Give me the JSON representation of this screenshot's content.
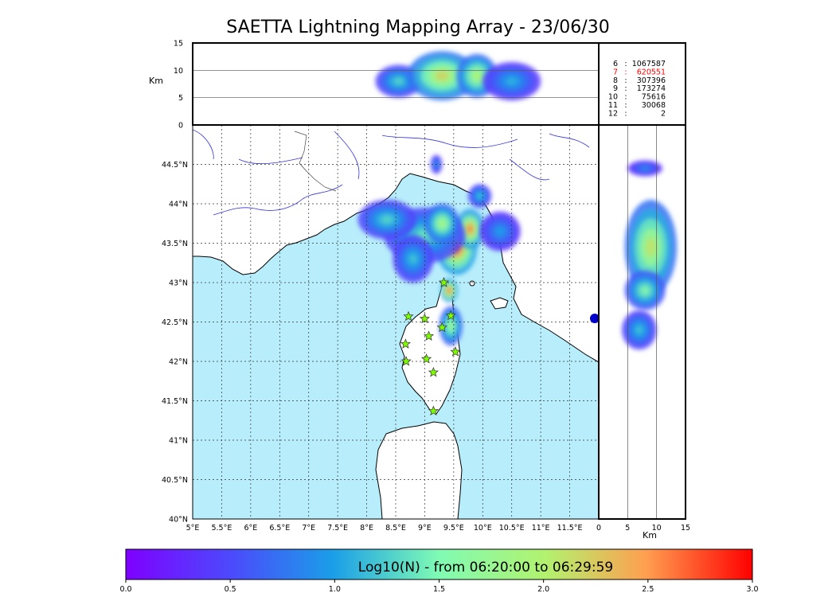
{
  "chart_data": {
    "type": "heatmap",
    "title": "SAETTA Lightning Mapping Array - 23/06/30",
    "colors": {
      "sea": "#b8eefb",
      "land": "#ffffff",
      "coast": "#000000",
      "rivers": "#3333dd",
      "borders": "#444444",
      "stations": "#7cfc00",
      "radar_dot": "#0000cc"
    },
    "colormap": "rainbow",
    "map": {
      "lon_range": [
        5,
        12
      ],
      "lat_range": [
        40,
        45
      ],
      "lon_ticks": [
        "5°E",
        "5.5°E",
        "6°E",
        "6.5°E",
        "7°E",
        "7.5°E",
        "8°E",
        "8.5°E",
        "9°E",
        "9.5°E",
        "10°E",
        "10.5°E",
        "11°E",
        "11.5°E"
      ],
      "lat_ticks": [
        "40°N",
        "40.5°N",
        "41°N",
        "41.5°N",
        "42°N",
        "42.5°N",
        "43°N",
        "43.5°N",
        "44°N",
        "44.5°N"
      ],
      "grid": true,
      "stations": [
        {
          "lon": 9.33,
          "lat": 43.0
        },
        {
          "lon": 8.72,
          "lat": 42.57
        },
        {
          "lon": 9.0,
          "lat": 42.54
        },
        {
          "lon": 9.45,
          "lat": 42.58
        },
        {
          "lon": 9.3,
          "lat": 42.43
        },
        {
          "lon": 9.07,
          "lat": 42.32
        },
        {
          "lon": 8.67,
          "lat": 42.22
        },
        {
          "lon": 9.53,
          "lat": 42.12
        },
        {
          "lon": 8.68,
          "lat": 42.0
        },
        {
          "lon": 9.03,
          "lat": 42.03
        },
        {
          "lon": 9.15,
          "lat": 41.86
        },
        {
          "lon": 9.15,
          "lat": 41.37
        }
      ],
      "density_blobs": [
        {
          "lon": 9.55,
          "lat": 43.45,
          "rlon": 0.35,
          "rlat": 0.35,
          "level": 2.8
        },
        {
          "lon": 9.78,
          "lat": 43.68,
          "rlon": 0.25,
          "rlat": 0.25,
          "level": 2.6
        },
        {
          "lon": 9.42,
          "lat": 42.9,
          "rlon": 0.15,
          "rlat": 0.15,
          "level": 2.7
        },
        {
          "lon": 9.45,
          "lat": 42.45,
          "rlon": 0.2,
          "rlat": 0.25,
          "level": 1.8
        },
        {
          "lon": 9.0,
          "lat": 43.6,
          "rlon": 0.7,
          "rlat": 0.35,
          "level": 1.4
        },
        {
          "lon": 8.35,
          "lat": 43.8,
          "rlon": 0.5,
          "rlat": 0.25,
          "level": 1.3
        },
        {
          "lon": 8.8,
          "lat": 43.3,
          "rlon": 0.35,
          "rlat": 0.3,
          "level": 1.2
        },
        {
          "lon": 9.3,
          "lat": 43.75,
          "rlon": 0.3,
          "rlat": 0.25,
          "level": 1.9
        },
        {
          "lon": 9.95,
          "lat": 44.1,
          "rlon": 0.2,
          "rlat": 0.15,
          "level": 1.2
        },
        {
          "lon": 10.3,
          "lat": 43.65,
          "rlon": 0.35,
          "rlat": 0.25,
          "level": 1.0
        },
        {
          "lon": 9.2,
          "lat": 44.5,
          "rlon": 0.1,
          "rlat": 0.12,
          "level": 1.0
        }
      ]
    },
    "alt_panel": {
      "ylabel": "Km",
      "y_range": [
        0,
        15
      ],
      "y_ticks": [
        "0",
        "5",
        "10",
        "15"
      ],
      "hlines": [
        5,
        10
      ],
      "legend": [
        {
          "label": "6",
          "count": "1067587",
          "color": "#000000"
        },
        {
          "label": "7",
          "count": "620551",
          "color": "#ff0000"
        },
        {
          "label": "8",
          "count": "307396",
          "color": "#000000"
        },
        {
          "label": "9",
          "count": "173274",
          "color": "#000000"
        },
        {
          "label": "10",
          "count": "75616",
          "color": "#000000"
        },
        {
          "label": "11",
          "count": "30068",
          "color": "#000000"
        },
        {
          "label": "12",
          "count": "2",
          "color": "#000000"
        }
      ],
      "blobs": [
        {
          "lon": 8.55,
          "alt": 8,
          "rlon": 0.4,
          "ralt": 3,
          "level": 1.3
        },
        {
          "lon": 9.3,
          "alt": 9,
          "rlon": 0.6,
          "ralt": 4.5,
          "level": 2.2
        },
        {
          "lon": 9.9,
          "alt": 9,
          "rlon": 0.35,
          "ralt": 4,
          "level": 2.0
        },
        {
          "lon": 10.5,
          "alt": 8,
          "rlon": 0.5,
          "ralt": 3.5,
          "level": 1.1
        }
      ]
    },
    "lat_panel": {
      "xlabel": "Km",
      "x_range": [
        0,
        15
      ],
      "x_ticks": [
        "0",
        "5",
        "10",
        "15"
      ],
      "vlines": [
        5,
        10
      ],
      "blobs": [
        {
          "lat": 43.45,
          "alt": 9,
          "rlat": 0.6,
          "ralt": 4.5,
          "level": 2.1
        },
        {
          "lat": 42.9,
          "alt": 8,
          "rlat": 0.25,
          "ralt": 3.5,
          "level": 1.6
        },
        {
          "lat": 44.45,
          "alt": 8,
          "rlat": 0.1,
          "ralt": 3,
          "level": 0.9
        },
        {
          "lat": 42.4,
          "alt": 7,
          "rlat": 0.25,
          "ralt": 3,
          "level": 1.2
        }
      ]
    },
    "colorbar": {
      "label": "Log10(N) - from 06:20:00 to 06:29:59",
      "range": [
        0,
        3
      ],
      "ticks": [
        "0.0",
        "0.5",
        "1.0",
        "1.5",
        "2.0",
        "2.5",
        "3.0"
      ]
    }
  }
}
